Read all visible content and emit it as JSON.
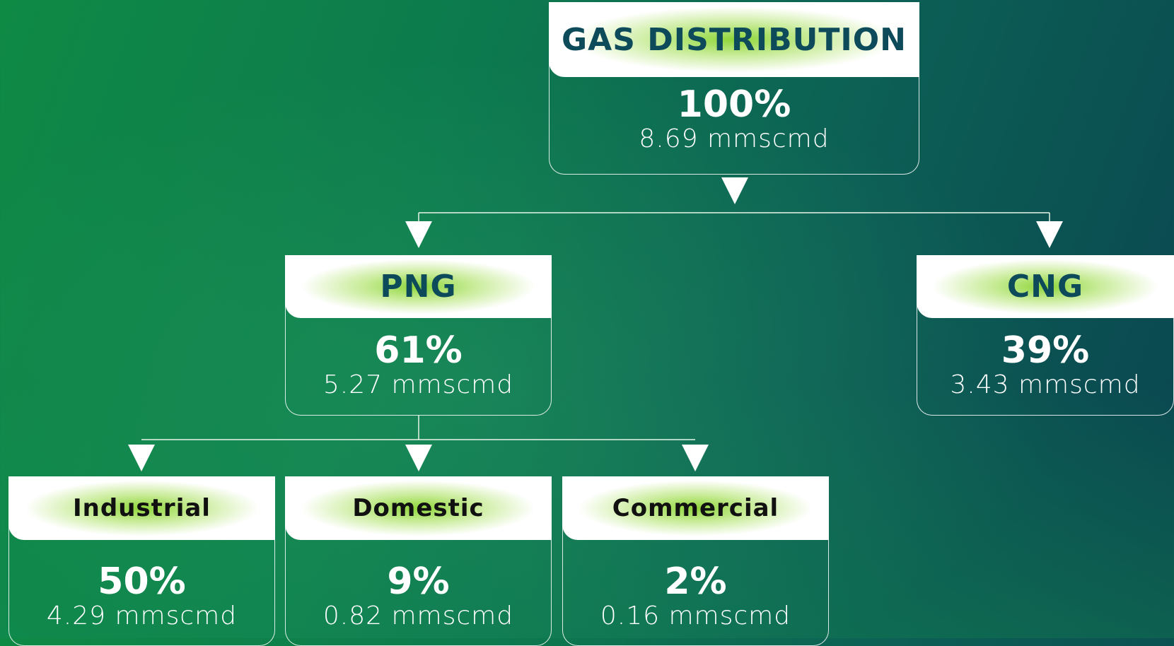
{
  "nodes": [
    {
      "title": "GAS DISTRIBUTION",
      "percent": "100%",
      "volume": "8.69 mmscmd"
    },
    {
      "title": "PNG",
      "percent": "61%",
      "volume": "5.27 mmscmd"
    },
    {
      "title": "CNG",
      "percent": "39%",
      "volume": "3.43 mmscmd"
    },
    {
      "title": "Industrial",
      "percent": "50%",
      "volume": "4.29 mmscmd"
    },
    {
      "title": "Domestic",
      "percent": "9%",
      "volume": "0.82 mmscmd"
    },
    {
      "title": "Commercial",
      "percent": "2%",
      "volume": "0.16 mmscmd"
    }
  ]
}
